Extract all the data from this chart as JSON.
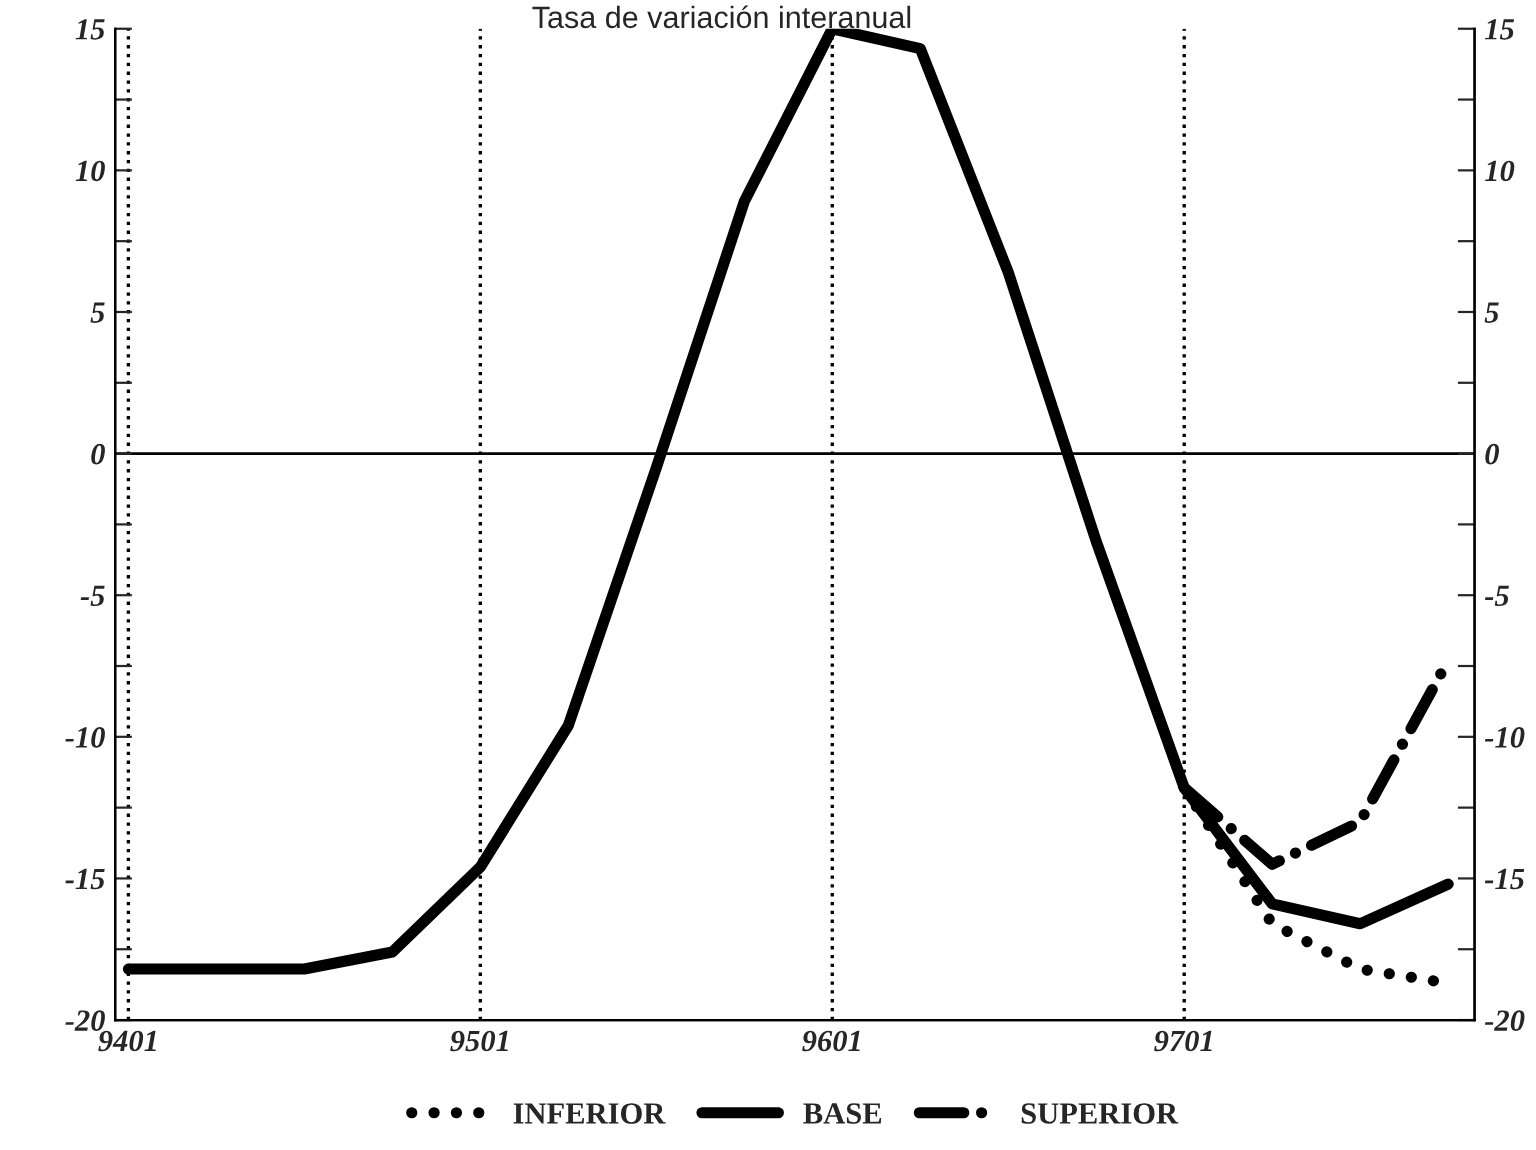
{
  "chart_data": {
    "type": "line",
    "title": "Tasa de variación interanual",
    "categories": [
      "9401",
      null,
      null,
      null,
      "9501",
      null,
      null,
      null,
      "9601",
      null,
      null,
      null,
      "9701",
      null,
      null,
      null
    ],
    "series": [
      {
        "name": "INFERIOR",
        "color": "#000000",
        "line_style": "dotted",
        "values": [
          null,
          null,
          null,
          null,
          null,
          null,
          null,
          null,
          null,
          null,
          null,
          null,
          -11.8,
          -16.6,
          -18.2,
          -18.7
        ]
      },
      {
        "name": "BASE",
        "color": "#000000",
        "line_style": "solid",
        "values": [
          -18.2,
          -18.2,
          -18.2,
          -17.6,
          -14.6,
          -9.6,
          -0.5,
          8.9,
          15.0,
          14.3,
          6.4,
          -3.1,
          -11.8,
          -15.9,
          -16.6,
          -15.2
        ]
      },
      {
        "name": "SUPERIOR",
        "color": "#000000",
        "line_style": "dashdot",
        "values": [
          null,
          null,
          null,
          null,
          null,
          null,
          null,
          null,
          null,
          null,
          null,
          null,
          -11.8,
          -14.5,
          -13.0,
          -7.3
        ]
      }
    ],
    "ylim": [
      -20,
      15
    ],
    "yticks": [
      -20,
      {
        "value": -17.5,
        "label": null
      },
      -15,
      {
        "value": -12.5,
        "label": null
      },
      -10,
      {
        "value": -7.5,
        "label": null
      },
      -5,
      {
        "value": -2.5,
        "label": null
      },
      0,
      {
        "value": 2.5,
        "label": null
      },
      5,
      {
        "value": 7.5,
        "label": null
      },
      10,
      {
        "value": 12.5,
        "label": null
      },
      15
    ],
    "y2lim": [
      -20,
      15
    ],
    "y2ticks": [
      -20,
      {
        "value": -17.5,
        "label": null
      },
      -15,
      {
        "value": -12.5,
        "label": null
      },
      -10,
      {
        "value": -7.5,
        "label": null
      },
      -5,
      {
        "value": -2.5,
        "label": null
      },
      0,
      {
        "value": 2.5,
        "label": null
      },
      5,
      {
        "value": 7.5,
        "label": null
      },
      10,
      {
        "value": 12.5,
        "label": null
      },
      15
    ],
    "ref_lines": [
      {
        "axis": "y",
        "value": 0,
        "line_style": "solid",
        "color": "#000000"
      }
    ],
    "grid": "x",
    "legend": "bottom"
  }
}
